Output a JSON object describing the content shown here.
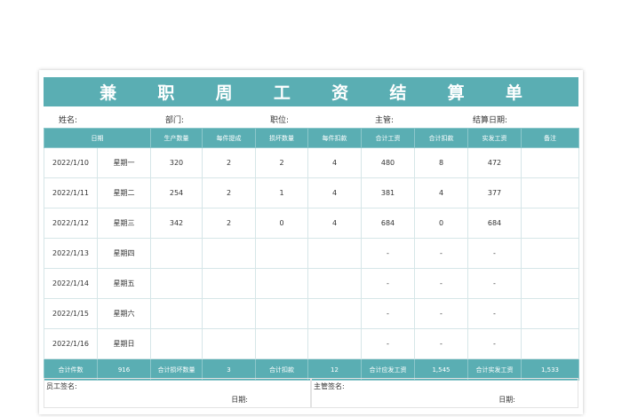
{
  "title": [
    "兼",
    "职",
    "周",
    "工",
    "资",
    "结",
    "算",
    "单"
  ],
  "info": {
    "name": "姓名:",
    "dept": "部门:",
    "position": "职位:",
    "supervisor": "主管:",
    "settle_date": "结算日期:"
  },
  "headers": [
    "日期",
    "生产数量",
    "每件提成",
    "损坏数量",
    "每件扣款",
    "合计工资",
    "合计扣款",
    "实发工资",
    "备注"
  ],
  "rows": [
    [
      "2022/1/10",
      "星期一",
      "320",
      "2",
      "2",
      "4",
      "480",
      "8",
      "472",
      ""
    ],
    [
      "2022/1/11",
      "星期二",
      "254",
      "2",
      "1",
      "4",
      "381",
      "4",
      "377",
      ""
    ],
    [
      "2022/1/12",
      "星期三",
      "342",
      "2",
      "0",
      "4",
      "684",
      "0",
      "684",
      ""
    ],
    [
      "2022/1/13",
      "星期四",
      "",
      "",
      "",
      "",
      "-",
      "-",
      "-",
      ""
    ],
    [
      "2022/1/14",
      "星期五",
      "",
      "",
      "",
      "",
      "-",
      "-",
      "-",
      ""
    ],
    [
      "2022/1/15",
      "星期六",
      "",
      "",
      "",
      "",
      "-",
      "-",
      "-",
      ""
    ],
    [
      "2022/1/16",
      "星期日",
      "",
      "",
      "",
      "",
      "-",
      "-",
      "-",
      ""
    ]
  ],
  "totals": [
    "合计件数",
    "916",
    "合计损坏数量",
    "3",
    "合计扣款",
    "12",
    "合计应发工资",
    "1,545",
    "合计实发工资",
    "1,533"
  ],
  "signature": {
    "employee": "员工签名:",
    "supervisor": "主管签名:",
    "date": "日期:"
  }
}
